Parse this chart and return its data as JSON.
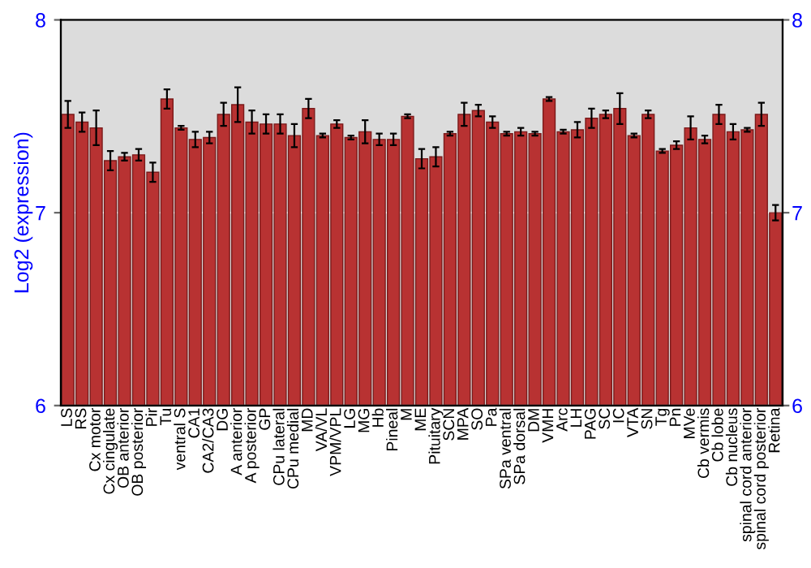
{
  "chart_data": {
    "type": "bar",
    "ylabel": "Log2 (expression)",
    "categories": [
      "LS",
      "RS",
      "Cx motor",
      "Cx cingulate",
      "OB anterior",
      "OB posterior",
      "Pir",
      "Tu",
      "ventral S",
      "CA1",
      "CA2/CA3",
      "DG",
      "A anterior",
      "A posterior",
      "GP",
      "CPu lateral",
      "CPu medial",
      "MD",
      "VA/VL",
      "VPM/VPL",
      "LG",
      "MG",
      "Hb",
      "Pineal",
      "M",
      "ME",
      "Pituitary",
      "SCN",
      "MPA",
      "SO",
      "Pa",
      "SPa ventral",
      "SPa dorsal",
      "DM",
      "VMH",
      "Arc",
      "LH",
      "PAG",
      "SC",
      "IC",
      "VTA",
      "SN",
      "Tg",
      "Pn",
      "MVe",
      "Cb vermis",
      "Cb lobe",
      "Cb nucleus",
      "spinal cord anterior",
      "spinal cord posterior",
      "Retina"
    ],
    "values": [
      7.51,
      7.47,
      7.44,
      7.27,
      7.29,
      7.3,
      7.21,
      7.59,
      7.44,
      7.38,
      7.39,
      7.51,
      7.56,
      7.47,
      7.46,
      7.46,
      7.4,
      7.54,
      7.4,
      7.46,
      7.39,
      7.42,
      7.38,
      7.38,
      7.5,
      7.28,
      7.29,
      7.41,
      7.51,
      7.53,
      7.47,
      7.41,
      7.42,
      7.41,
      7.59,
      7.42,
      7.43,
      7.49,
      7.51,
      7.54,
      7.4,
      7.51,
      7.32,
      7.35,
      7.44,
      7.38,
      7.51,
      7.42,
      7.43,
      7.51,
      7.0
    ],
    "errors": [
      0.07,
      0.05,
      0.09,
      0.05,
      0.02,
      0.03,
      0.05,
      0.05,
      0.01,
      0.04,
      0.03,
      0.06,
      0.09,
      0.06,
      0.05,
      0.05,
      0.06,
      0.05,
      0.01,
      0.02,
      0.01,
      0.06,
      0.03,
      0.03,
      0.01,
      0.05,
      0.05,
      0.01,
      0.06,
      0.03,
      0.03,
      0.01,
      0.02,
      0.01,
      0.01,
      0.01,
      0.04,
      0.05,
      0.02,
      0.08,
      0.01,
      0.02,
      0.01,
      0.02,
      0.06,
      0.02,
      0.05,
      0.04,
      0.01,
      0.06,
      0.04
    ],
    "color": "#b83232",
    "ylim": [
      6,
      8
    ],
    "yticks": [
      6,
      7,
      8
    ],
    "y2lim": [
      6,
      8
    ],
    "y2ticks": [
      6,
      7,
      8
    ],
    "grid": "y"
  }
}
